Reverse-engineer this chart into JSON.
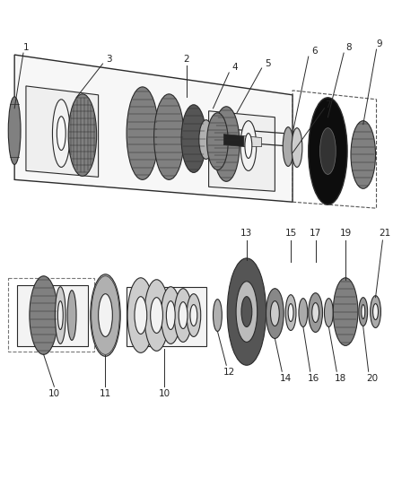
{
  "bg_color": "#ffffff",
  "line_color": "#2a2a2a",
  "dark_gear": "#555555",
  "mid_gear": "#808080",
  "light_gear": "#b0b0b0",
  "very_dark": "#111111",
  "white_part": "#f2f2f2",
  "box_fill": "#f8f8f8",
  "label_fs": 7.5,
  "label_color": "#222222"
}
